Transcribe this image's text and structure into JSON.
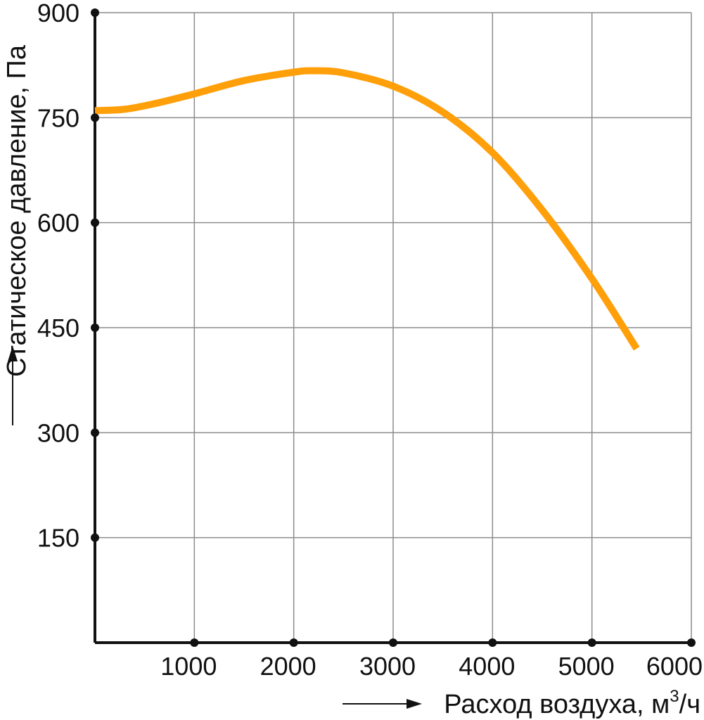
{
  "chart_data": {
    "type": "line",
    "xlabel": {
      "main": "Расход воздуха, м",
      "sup": "3",
      "tail": "/ч"
    },
    "ylabel": "Статическое давление, Па",
    "xlim": [
      0,
      6000
    ],
    "ylim": [
      0,
      900
    ],
    "xticks": [
      "1000",
      "2000",
      "3000",
      "4000",
      "5000",
      "6000"
    ],
    "xtick_values": [
      1000,
      2000,
      3000,
      4000,
      5000,
      6000
    ],
    "yticks": [
      "150",
      "300",
      "450",
      "600",
      "750",
      "900"
    ],
    "ytick_values": [
      150,
      300,
      450,
      600,
      750,
      900
    ],
    "grid": true,
    "series": [
      {
        "color": "#FF9F0A",
        "x": [
          0,
          300,
          600,
          1000,
          1500,
          2000,
          2200,
          2500,
          3000,
          3500,
          4000,
          4500,
          5000,
          5450
        ],
        "y": [
          760,
          762,
          770,
          784,
          803,
          815,
          817,
          814,
          795,
          758,
          700,
          618,
          520,
          420
        ]
      }
    ]
  }
}
